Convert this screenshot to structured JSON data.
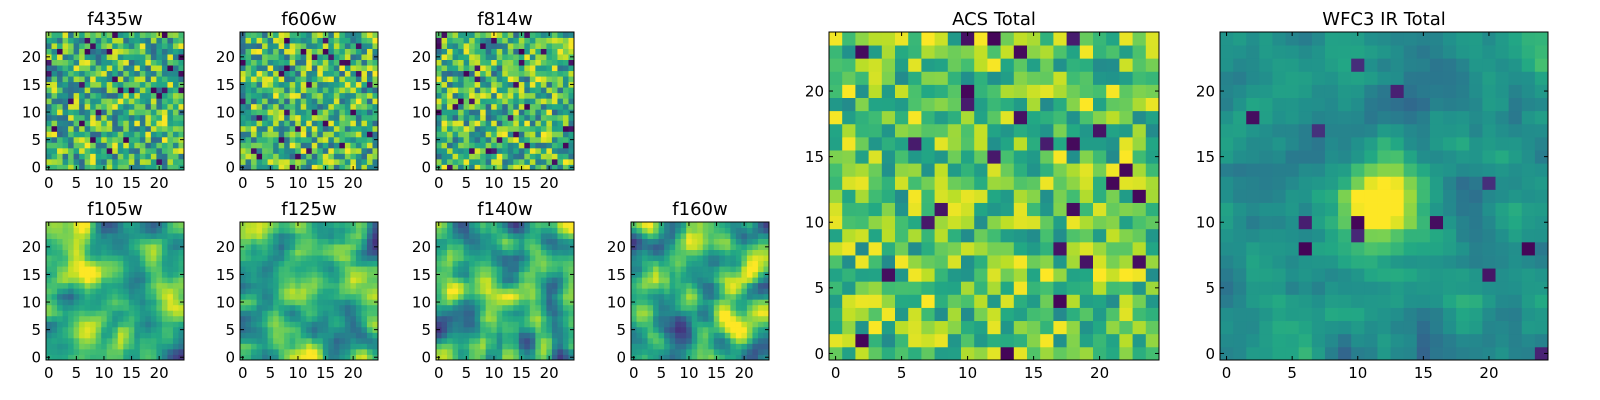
{
  "chart_data": [
    {
      "type": "heatmap",
      "title": "f435w",
      "grid_size": [
        25,
        25
      ],
      "xlim": [
        -0.5,
        24.5
      ],
      "ylim": [
        -0.5,
        24.5
      ],
      "x_ticks": [
        0,
        5,
        10,
        15,
        20
      ],
      "y_ticks": [
        0,
        5,
        10,
        15,
        20
      ],
      "colormap": "viridis",
      "origin": "lower",
      "pattern": "noise",
      "seed": 11
    },
    {
      "type": "heatmap",
      "title": "f606w",
      "grid_size": [
        25,
        25
      ],
      "xlim": [
        -0.5,
        24.5
      ],
      "ylim": [
        -0.5,
        24.5
      ],
      "x_ticks": [
        0,
        5,
        10,
        15,
        20
      ],
      "y_ticks": [
        0,
        5,
        10,
        15,
        20
      ],
      "colormap": "viridis",
      "origin": "lower",
      "pattern": "noise",
      "seed": 23
    },
    {
      "type": "heatmap",
      "title": "f814w",
      "grid_size": [
        25,
        25
      ],
      "xlim": [
        -0.5,
        24.5
      ],
      "ylim": [
        -0.5,
        24.5
      ],
      "x_ticks": [
        0,
        5,
        10,
        15,
        20
      ],
      "y_ticks": [
        0,
        5,
        10,
        15,
        20
      ],
      "colormap": "viridis",
      "origin": "lower",
      "pattern": "noise",
      "seed": 37
    },
    {
      "type": "heatmap",
      "title": "f105w",
      "grid_size": [
        25,
        25
      ],
      "xlim": [
        -0.5,
        24.5
      ],
      "ylim": [
        -0.5,
        24.5
      ],
      "x_ticks": [
        0,
        5,
        10,
        15,
        20
      ],
      "y_ticks": [
        0,
        5,
        10,
        15,
        20
      ],
      "colormap": "viridis",
      "origin": "lower",
      "pattern": "smooth",
      "seed": 41
    },
    {
      "type": "heatmap",
      "title": "f125w",
      "grid_size": [
        25,
        25
      ],
      "xlim": [
        -0.5,
        24.5
      ],
      "ylim": [
        -0.5,
        24.5
      ],
      "x_ticks": [
        0,
        5,
        10,
        15,
        20
      ],
      "y_ticks": [
        0,
        5,
        10,
        15,
        20
      ],
      "colormap": "viridis",
      "origin": "lower",
      "pattern": "smooth",
      "seed": 53
    },
    {
      "type": "heatmap",
      "title": "f140w",
      "grid_size": [
        25,
        25
      ],
      "xlim": [
        -0.5,
        24.5
      ],
      "ylim": [
        -0.5,
        24.5
      ],
      "x_ticks": [
        0,
        5,
        10,
        15,
        20
      ],
      "y_ticks": [
        0,
        5,
        10,
        15,
        20
      ],
      "colormap": "viridis",
      "origin": "lower",
      "pattern": "smooth",
      "seed": 67
    },
    {
      "type": "heatmap",
      "title": "f160w",
      "grid_size": [
        25,
        25
      ],
      "xlim": [
        -0.5,
        24.5
      ],
      "ylim": [
        -0.5,
        24.5
      ],
      "x_ticks": [
        0,
        5,
        10,
        15,
        20
      ],
      "y_ticks": [
        0,
        5,
        10,
        15,
        20
      ],
      "colormap": "viridis",
      "origin": "lower",
      "pattern": "smooth",
      "seed": 79
    },
    {
      "type": "heatmap",
      "title": "ACS Total",
      "grid_size": [
        25,
        25
      ],
      "xlim": [
        -0.5,
        24.5
      ],
      "ylim": [
        -0.5,
        24.5
      ],
      "x_ticks": [
        0,
        5,
        10,
        15,
        20
      ],
      "y_ticks": [
        0,
        5,
        10,
        15,
        20
      ],
      "colormap": "viridis",
      "origin": "lower",
      "pattern": "noise-bright",
      "seed": 97
    },
    {
      "type": "heatmap",
      "title": "WFC3 IR Total",
      "grid_size": [
        25,
        25
      ],
      "xlim": [
        -0.5,
        24.5
      ],
      "ylim": [
        -0.5,
        24.5
      ],
      "x_ticks": [
        0,
        5,
        10,
        15,
        20
      ],
      "y_ticks": [
        0,
        5,
        10,
        15,
        20
      ],
      "colormap": "viridis",
      "origin": "lower",
      "pattern": "central-source",
      "source_center": [
        11.5,
        11.5
      ],
      "seed": 101
    }
  ]
}
